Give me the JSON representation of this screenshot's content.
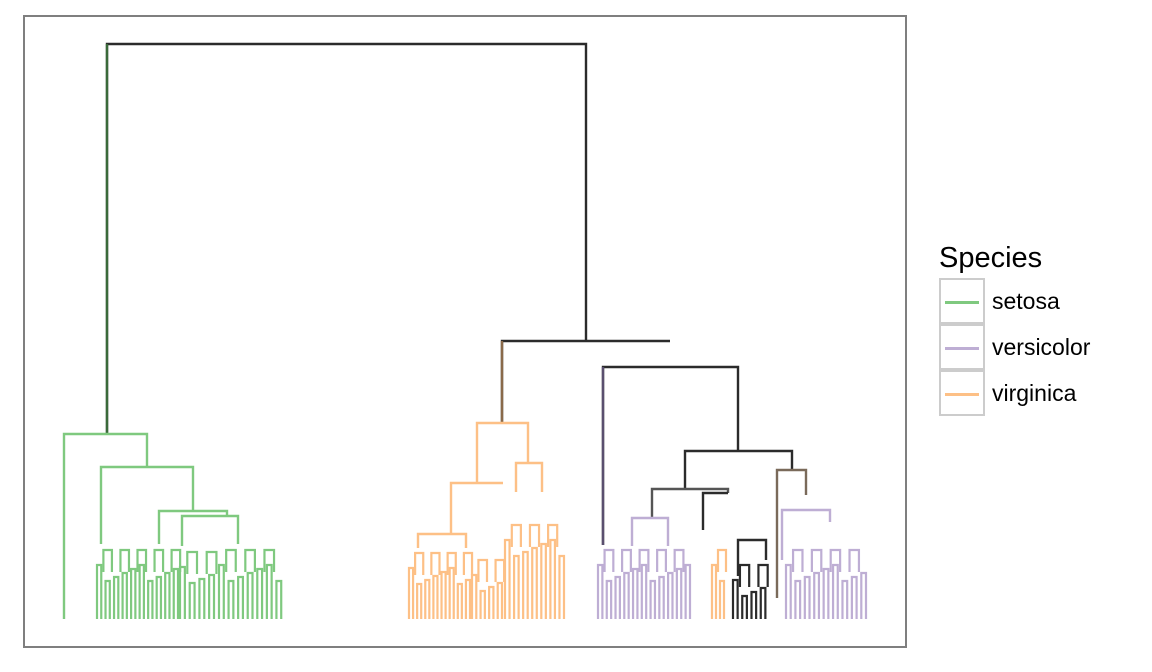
{
  "legend": {
    "title": "Species",
    "items": [
      {
        "label": "setosa",
        "color": "#7fc97f"
      },
      {
        "label": "versicolor",
        "color": "#beaed4"
      },
      {
        "label": "virginica",
        "color": "#fdc086"
      }
    ]
  },
  "colors": {
    "setosa": "#7fc97f",
    "versicolor": "#beaed4",
    "virginica": "#fdc086",
    "mixed": "#2b2b2b",
    "panel_border": "#7f7f7f"
  }
}
